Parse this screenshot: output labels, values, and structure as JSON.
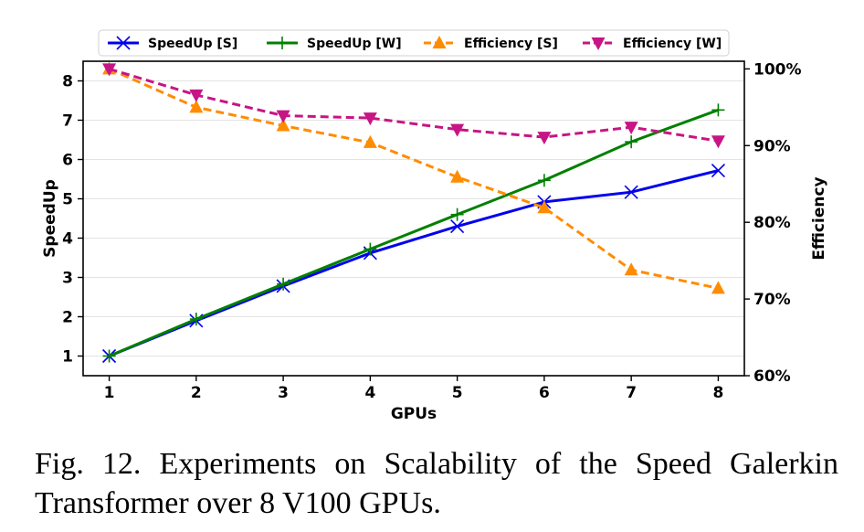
{
  "chart_data": {
    "type": "line",
    "x": [
      1,
      2,
      3,
      4,
      5,
      6,
      7,
      8
    ],
    "xlabel": "GPUs",
    "ylabel": "SpeedUp",
    "y2label": "Efficiency",
    "xlim": [
      0.7,
      8.3
    ],
    "ylim": [
      0.5,
      8.5
    ],
    "y2lim": [
      60,
      101
    ],
    "xticks": [
      "1",
      "2",
      "3",
      "4",
      "5",
      "6",
      "7",
      "8"
    ],
    "yticks": [
      "1",
      "2",
      "3",
      "4",
      "5",
      "6",
      "7",
      "8"
    ],
    "y2ticks": [
      "60%",
      "70%",
      "80%",
      "90%",
      "100%"
    ],
    "grid": "horizontal",
    "legend_position": "top",
    "series": [
      {
        "name": "SpeedUp [S]",
        "axis": "left",
        "color": "#0000ee",
        "dash": "solid",
        "marker": "x",
        "values": [
          1.0,
          1.9,
          2.78,
          3.62,
          4.3,
          4.92,
          5.17,
          5.72
        ]
      },
      {
        "name": "SpeedUp [W]",
        "axis": "left",
        "color": "#008000",
        "dash": "solid",
        "marker": "plus",
        "values": [
          1.0,
          1.94,
          2.83,
          3.72,
          4.6,
          5.47,
          6.45,
          7.26
        ]
      },
      {
        "name": "Efficiency [S]",
        "axis": "right",
        "color": "#ff8c00",
        "dash": "dashed",
        "marker": "triangle-up",
        "values": [
          100,
          95,
          92.6,
          90.4,
          85.9,
          81.9,
          73.8,
          71.4
        ]
      },
      {
        "name": "Efficiency [W]",
        "axis": "right",
        "color": "#c71585",
        "dash": "dashed",
        "marker": "triangle-down",
        "values": [
          100,
          96.6,
          93.9,
          93.6,
          92.1,
          91.1,
          92.4,
          90.6
        ]
      }
    ]
  },
  "caption": "Fig. 12. Experiments on Scalability of the Speed Galerkin Transformer over 8 V100 GPUs."
}
